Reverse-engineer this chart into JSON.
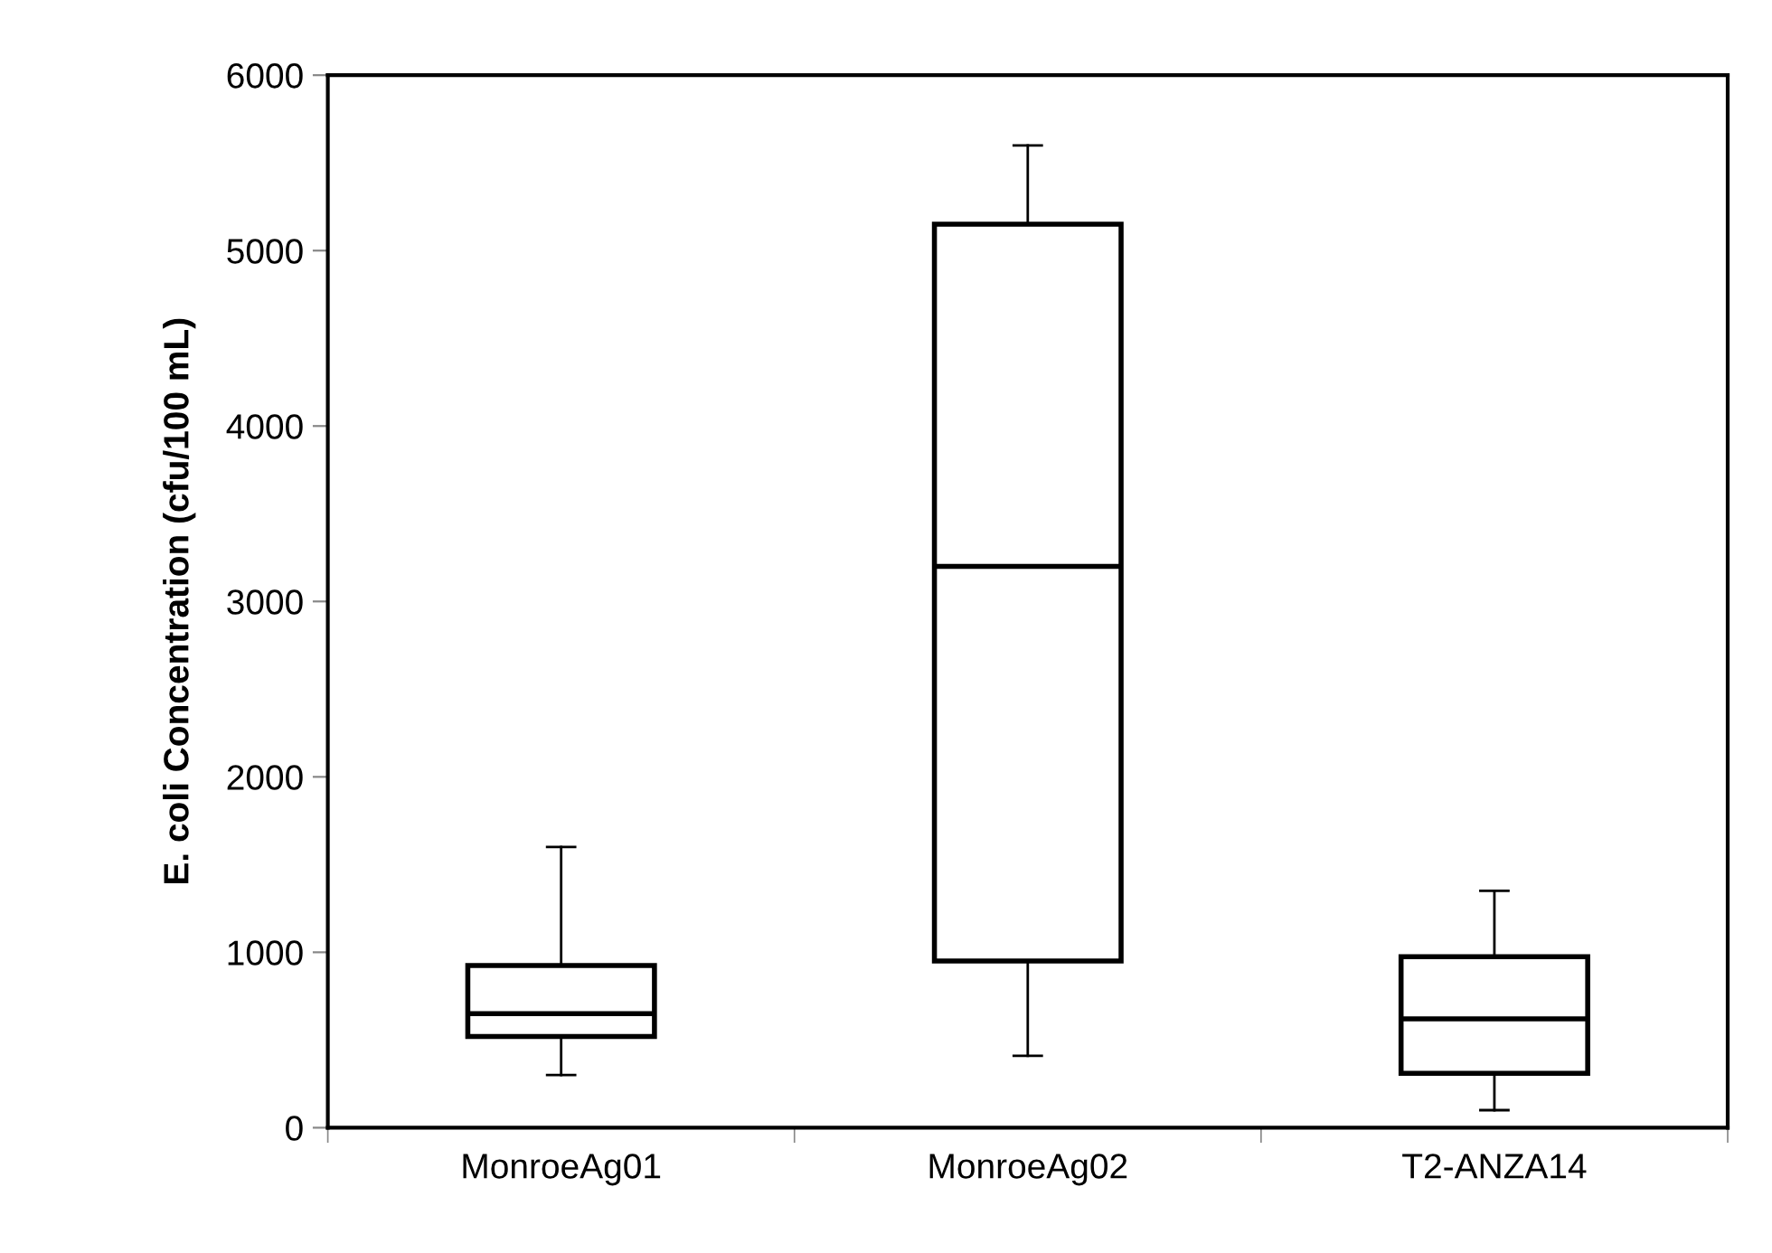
{
  "chart_data": {
    "type": "box",
    "ylabel": "E. coli Concentration (cfu/100 mL)",
    "categories": [
      "MonroeAg01",
      "MonroeAg02",
      "T2-ANZA14"
    ],
    "boxes": [
      {
        "low": 300,
        "q1": 520,
        "median": 650,
        "q3": 925,
        "high": 1600
      },
      {
        "low": 410,
        "q1": 950,
        "median": 3200,
        "q3": 5150,
        "high": 5600
      },
      {
        "low": 100,
        "q1": 310,
        "median": 620,
        "q3": 975,
        "high": 1350
      }
    ],
    "ylim": [
      0,
      6000
    ],
    "yticks": [
      0,
      1000,
      2000,
      3000,
      4000,
      5000,
      6000
    ],
    "grid": false,
    "legend": false
  }
}
